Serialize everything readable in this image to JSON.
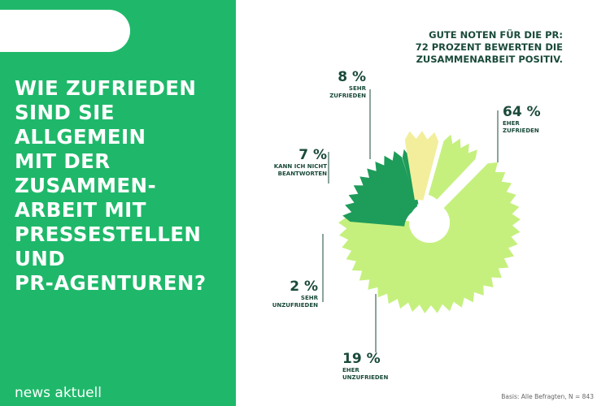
{
  "left_panel": {
    "question_lines": [
      "Wie zufrieden",
      "sind Sie",
      "allgemein",
      "mit der",
      "Zusammen-",
      "arbeit mit",
      "Pressestellen",
      "und",
      "PR-Agenturen?"
    ],
    "brand": "news aktuell"
  },
  "headline_lines": [
    "Gute Noten für die PR:",
    "72 Prozent bewerten die",
    "Zusammenarbeit positiv."
  ],
  "source": "Basis: Alle Befragten, N = 843",
  "colors": {
    "panel_green": "#1fb86a",
    "eher_zufrieden": "#c5f07e",
    "sehr_zufrieden": "#c5f07e",
    "kann_nicht": "#f3ee9c",
    "sehr_unzufrieden": "#1e9c5a",
    "eher_unzufrieden": "#1e9c5a",
    "text_dark": "#1a4a3a"
  },
  "chart_data": {
    "type": "pie",
    "title": "",
    "slices": [
      {
        "value": 64,
        "label": "64 %",
        "category": [
          "eher",
          "zufrieden"
        ]
      },
      {
        "value": 19,
        "label": "19 %",
        "category": [
          "eher",
          "unzufrieden"
        ]
      },
      {
        "value": 2,
        "label": "2 %",
        "category": [
          "sehr",
          "unzufrieden"
        ]
      },
      {
        "value": 7,
        "label": "7 %",
        "category": [
          "kann ich nicht",
          "beantworten"
        ]
      },
      {
        "value": 8,
        "label": "8 %",
        "category": [
          "sehr",
          "zufrieden"
        ]
      }
    ]
  }
}
